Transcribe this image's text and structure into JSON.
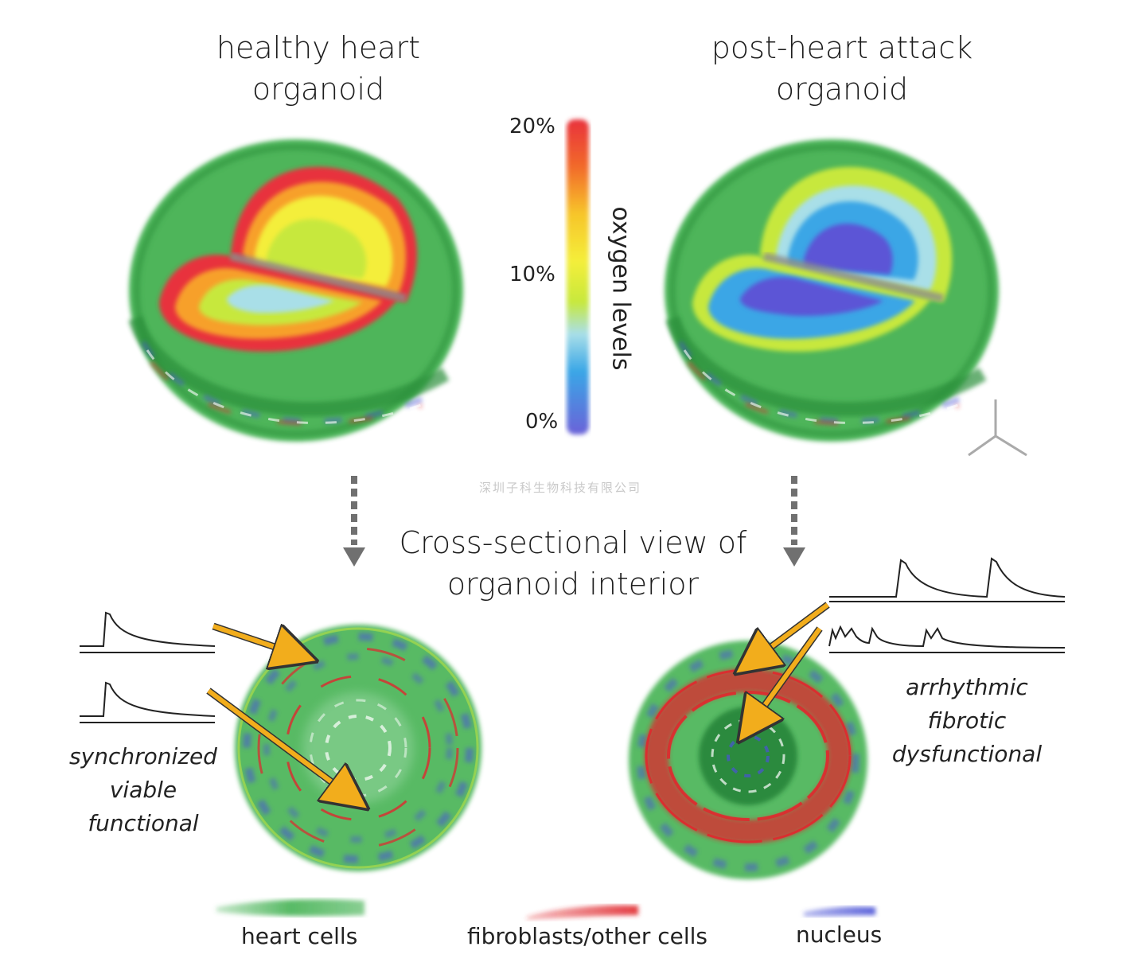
{
  "titles": {
    "left": [
      "healthy heart",
      "organoid"
    ],
    "right": [
      "post-heart attack",
      "organoid"
    ],
    "center": [
      "Cross-sectional view of",
      "organoid interior"
    ]
  },
  "oxygen_scale": {
    "label": "oxygen levels",
    "ticks": {
      "top": "20%",
      "mid": "10%",
      "bottom": "0%"
    },
    "gradient_colors": [
      "#e8323c",
      "#f26a2a",
      "#f7c52a",
      "#f4ee3a",
      "#c7e83c",
      "#a9dfe8",
      "#3aa6e6",
      "#6b62d8"
    ]
  },
  "captions": {
    "left": [
      "synchronized",
      "viable",
      "functional"
    ],
    "right": [
      "arrhythmic",
      "fibrotic",
      "dysfunctional"
    ]
  },
  "legend": {
    "heart_cells": "heart cells",
    "fibroblasts": "fibroblasts/other cells",
    "nucleus": "nucleus"
  },
  "watermark": "深圳子科生物科技有限公司",
  "colors": {
    "heart_cells": "#3aae4a",
    "fibroblasts": "#e0282e",
    "nucleus": "#4a52d6",
    "arrow_orange": "#f2ad1c",
    "arrow_gray": "#707070",
    "trace": "#222222"
  }
}
